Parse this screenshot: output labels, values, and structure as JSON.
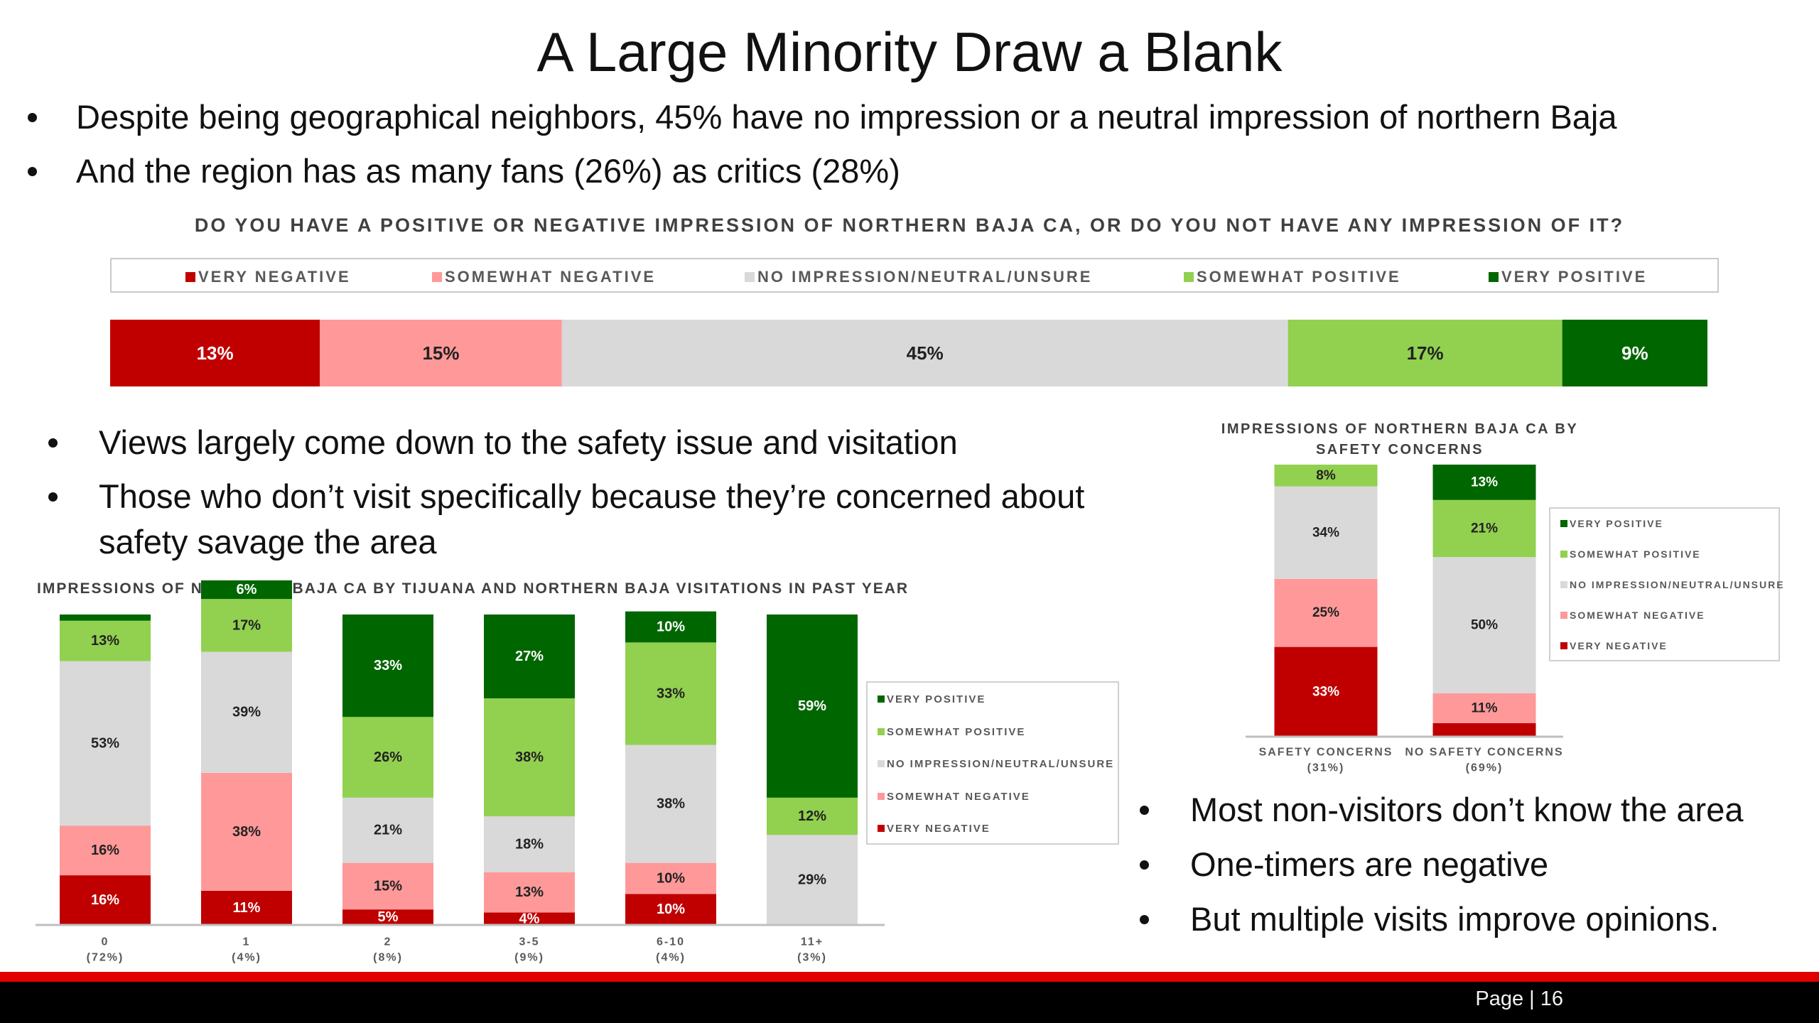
{
  "title": "A Large Minority Draw a Blank",
  "bullets_top": [
    "Despite being geographical neighbors, 45% have no impression or a neutral impression of northern Baja",
    "And the region has as many fans (26%) as critics (28%)"
  ],
  "bullets_mid": [
    "Views largely come down to the safety issue and visitation",
    "Those who don’t visit specifically because they’re concerned about safety savage the area"
  ],
  "bullets_right": [
    "Most non-visitors don’t know the area",
    "One-timers are negative",
    "But multiple visits improve opinions."
  ],
  "footer": {
    "page": "Page | 16"
  },
  "colors": {
    "very_negative": "#c00000",
    "somewhat_negative": "#ff9999",
    "neutral": "#d9d9d9",
    "somewhat_positive": "#92d050",
    "very_positive": "#006600"
  },
  "legend_labels": {
    "very_negative": "VERY NEGATIVE",
    "somewhat_negative": "SOMEWHAT NEGATIVE",
    "neutral": "NO IMPRESSION/NEUTRAL/UNSURE",
    "somewhat_positive": "SOMEWHAT POSITIVE",
    "very_positive": "VERY POSITIVE"
  },
  "chart_data": [
    {
      "type": "bar",
      "orientation": "horizontal",
      "stacked": true,
      "title": "DO YOU HAVE A POSITIVE OR NEGATIVE IMPRESSION OF NORTHERN BAJA CA, OR DO YOU NOT HAVE ANY IMPRESSION OF IT?",
      "legend_position": "top",
      "series": [
        {
          "name": "VERY NEGATIVE",
          "values": [
            13
          ],
          "labels": [
            "13%"
          ]
        },
        {
          "name": "SOMEWHAT NEGATIVE",
          "values": [
            15
          ],
          "labels": [
            "15%"
          ]
        },
        {
          "name": "NO IMPRESSION/NEUTRAL/UNSURE",
          "values": [
            45
          ],
          "labels": [
            "45%"
          ]
        },
        {
          "name": "SOMEWHAT POSITIVE",
          "values": [
            17
          ],
          "labels": [
            "17%"
          ]
        },
        {
          "name": "VERY POSITIVE",
          "values": [
            9
          ],
          "labels": [
            "9%"
          ]
        }
      ]
    },
    {
      "type": "bar",
      "stacked": true,
      "title": "IMPRESSIONS OF NORTHERN BAJA CA BY TIJUANA AND NORTHERN BAJA VISITATIONS IN PAST YEAR",
      "legend_position": "right",
      "categories": [
        "0",
        "1",
        "2",
        "3-5",
        "6-10",
        "11+"
      ],
      "category_sublabels": [
        "(72%)",
        "(4%)",
        "(8%)",
        "(9%)",
        "(4%)",
        "(3%)"
      ],
      "series": [
        {
          "name": "VERY NEGATIVE",
          "values": [
            16,
            11,
            5,
            4,
            10,
            0
          ],
          "labels": [
            "16%",
            "11%",
            "5%",
            "4%",
            "10%",
            ""
          ]
        },
        {
          "name": "SOMEWHAT NEGATIVE",
          "values": [
            16,
            38,
            15,
            13,
            10,
            0
          ],
          "labels": [
            "16%",
            "38%",
            "15%",
            "13%",
            "10%",
            ""
          ]
        },
        {
          "name": "NO IMPRESSION/NEUTRAL/UNSURE",
          "values": [
            53,
            39,
            21,
            18,
            38,
            29
          ],
          "labels": [
            "53%",
            "39%",
            "21%",
            "18%",
            "38%",
            "29%"
          ]
        },
        {
          "name": "SOMEWHAT POSITIVE",
          "values": [
            13,
            17,
            26,
            38,
            33,
            12
          ],
          "labels": [
            "13%",
            "17%",
            "26%",
            "38%",
            "33%",
            "12%"
          ]
        },
        {
          "name": "VERY POSITIVE",
          "values": [
            2,
            6,
            33,
            27,
            10,
            59
          ],
          "labels": [
            "",
            "6%",
            "33%",
            "27%",
            "10%",
            "59%"
          ]
        }
      ]
    },
    {
      "type": "bar",
      "stacked": true,
      "title": "IMPRESSIONS OF NORTHERN BAJA CA BY SAFETY CONCERNS",
      "legend_position": "right",
      "categories": [
        "SAFETY CONCERNS",
        "NO SAFETY CONCERNS"
      ],
      "category_sublabels": [
        "(31%)",
        "(69%)"
      ],
      "series": [
        {
          "name": "VERY NEGATIVE",
          "values": [
            33,
            5
          ],
          "labels": [
            "33%",
            ""
          ]
        },
        {
          "name": "SOMEWHAT NEGATIVE",
          "values": [
            25,
            11
          ],
          "labels": [
            "25%",
            "11%"
          ]
        },
        {
          "name": "NO IMPRESSION/NEUTRAL/UNSURE",
          "values": [
            34,
            50
          ],
          "labels": [
            "34%",
            "50%"
          ]
        },
        {
          "name": "SOMEWHAT POSITIVE",
          "values": [
            8,
            21
          ],
          "labels": [
            "8%",
            "21%"
          ]
        },
        {
          "name": "VERY POSITIVE",
          "values": [
            0,
            13
          ],
          "labels": [
            "",
            "13%"
          ]
        }
      ]
    }
  ]
}
